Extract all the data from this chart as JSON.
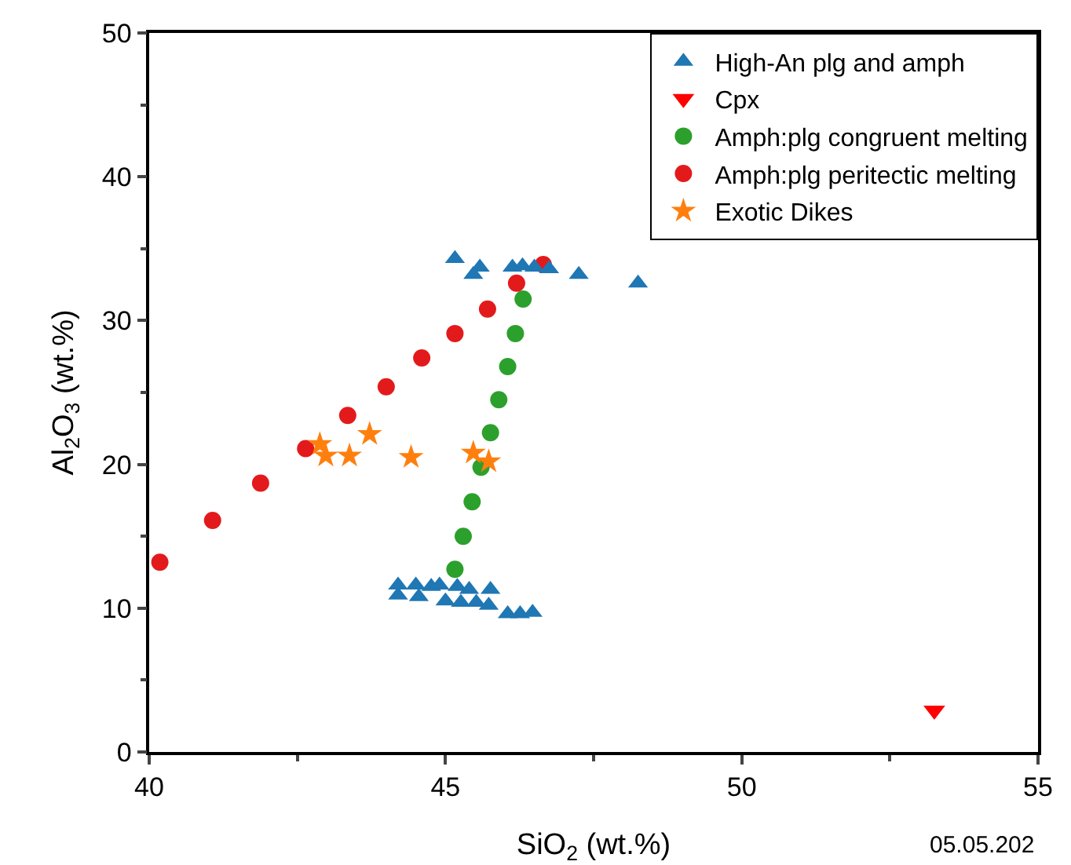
{
  "chart_data": {
    "type": "scatter",
    "xlabel": "SiO$_{2}$ (wt.%)",
    "ylabel": "Al$_{2}$O$_{3}$ (wt.%)",
    "xlim": [
      40,
      55
    ],
    "xticks": [
      40,
      45,
      50,
      55
    ],
    "ylim": [
      0,
      50
    ],
    "yticks": [
      0,
      10,
      20,
      30,
      40,
      50
    ],
    "grid": false,
    "legend": "top right",
    "annotations": [
      "05.05.202"
    ],
    "series": [
      {
        "name": "High-An plg and amph",
        "color": "#1f77b4",
        "marker": "triangle",
        "x": [
          45.16,
          45.58,
          45.47,
          46.13,
          46.3,
          46.5,
          46.75,
          47.25,
          48.25,
          44.2,
          44.5,
          44.2,
          44.76,
          44.9,
          44.55,
          45.2,
          45.4,
          45.76,
          45.0,
          45.26,
          45.52,
          45.73,
          46.05,
          46.26,
          46.47
        ],
        "values": [
          34.3,
          33.7,
          33.2,
          33.7,
          33.8,
          33.7,
          33.6,
          33.2,
          32.6,
          11.6,
          11.6,
          10.9,
          11.5,
          11.6,
          10.8,
          11.5,
          11.3,
          11.3,
          10.5,
          10.4,
          10.4,
          10.2,
          9.6,
          9.6,
          9.7
        ]
      },
      {
        "name": "Cpx",
        "color": "#ff0000",
        "marker": "triangle-down",
        "x": [
          53.25
        ],
        "values": [
          2.9
        ]
      },
      {
        "name": "Amph:plg congruent melting",
        "color": "#2ca02c",
        "marker": "circle",
        "x": [
          45.16,
          45.3,
          45.45,
          45.6,
          45.76,
          45.9,
          46.05,
          46.18,
          46.31
        ],
        "values": [
          12.7,
          15.0,
          17.4,
          19.8,
          22.2,
          24.5,
          26.8,
          29.1,
          31.5
        ]
      },
      {
        "name": "Amph:plg peritectic melting",
        "color": "#e31a1c",
        "marker": "circle",
        "x": [
          40.18,
          41.07,
          41.88,
          42.64,
          43.35,
          44.0,
          44.6,
          45.16,
          45.71,
          46.2,
          46.65
        ],
        "values": [
          13.2,
          16.1,
          18.7,
          21.1,
          23.4,
          25.4,
          27.4,
          29.1,
          30.8,
          32.6,
          33.9
        ]
      },
      {
        "name": "Exotic Dikes",
        "color": "#ff7f0e",
        "marker": "star",
        "x": [
          42.88,
          42.98,
          43.38,
          43.72,
          44.42,
          45.47,
          45.73
        ],
        "values": [
          21.4,
          20.6,
          20.6,
          22.1,
          20.5,
          20.8,
          20.2
        ]
      }
    ]
  }
}
